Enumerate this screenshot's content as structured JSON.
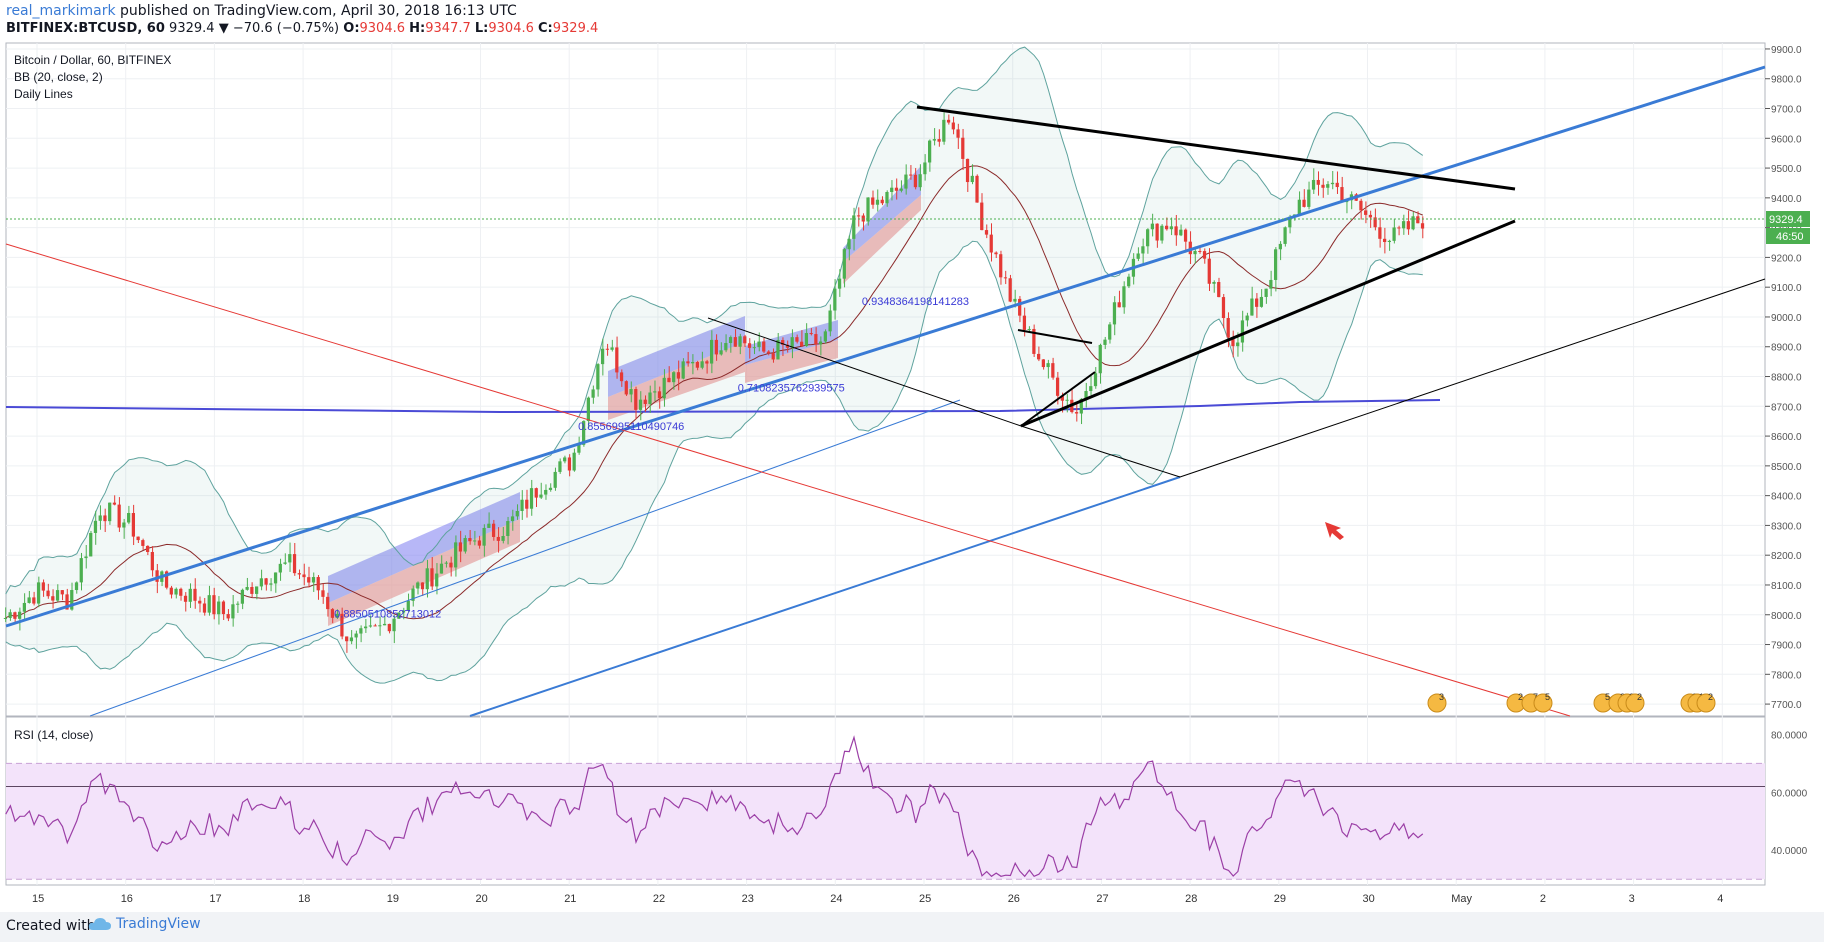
{
  "header": {
    "author": "real_markimark",
    "published": "published on TradingView.com, April 30, 2018 16:13 UTC",
    "symbol": "BITFINEX:BTCUSD, 60",
    "last": "9329.4",
    "change": "▼ −70.6 (−0.75%)",
    "o_label": "O:",
    "o": "9304.6",
    "h_label": "H:",
    "h": "9347.7",
    "l_label": "L:",
    "l": "9304.6",
    "c_label": "C:",
    "c": "9329.4"
  },
  "legend": {
    "line1": "Bitcoin / Dollar, 60, BITFINEX",
    "line2": "BB (20, close, 2)",
    "line3": "Daily Lines"
  },
  "price_badges": {
    "last": "9329.4",
    "countdown": "46:50"
  },
  "rsi_label": "RSI (14, close)",
  "footer": {
    "created": "Created with",
    "brand": "TradingView"
  },
  "colors": {
    "up": "#4caf50",
    "down": "#e53935",
    "trend": "#3a7bd5",
    "bb": "#5fa39e",
    "ma": "#8b2a2a",
    "rsi": "#9b3fa6",
    "rsi_band": "#f3e3fa"
  },
  "chart_data": {
    "type": "candlestick",
    "price_axis": {
      "ticks": [
        "7700.0",
        "7800.0",
        "7900.0",
        "8000.0",
        "8100.0",
        "8200.0",
        "8300.0",
        "8400.0",
        "8500.0",
        "8600.0",
        "8700.0",
        "8800.0",
        "8900.0",
        "9000.0",
        "9100.0",
        "9200.0",
        "9300.0",
        "9400.0",
        "9500.0",
        "9600.0",
        "9700.0",
        "9800.0",
        "9900.0"
      ],
      "ylim": [
        7660,
        9920
      ]
    },
    "rsi_axis": {
      "ticks": [
        "40.0000",
        "60.0000",
        "80.0000"
      ],
      "ylim": [
        28,
        86
      ],
      "bands": [
        30,
        70
      ],
      "level": 62
    },
    "x_axis": {
      "ticks": [
        "15",
        "16",
        "17",
        "18",
        "19",
        "20",
        "21",
        "22",
        "23",
        "24",
        "25",
        "26",
        "27",
        "28",
        "29",
        "30",
        "May",
        "2",
        "3",
        "4"
      ]
    },
    "series_close": [
      7990,
      8080,
      8050,
      8360,
      8300,
      8100,
      8060,
      8000,
      8120,
      8170,
      8080,
      7900,
      7960,
      8080,
      8180,
      8260,
      8300,
      8440,
      8520,
      8930,
      8720,
      8780,
      8850,
      8950,
      8880,
      8900,
      8920,
      9340,
      9400,
      9480,
      9690,
      9330,
      9040,
      8830,
      8680,
      8950,
      9260,
      9320,
      9180,
      8920,
      9100,
      9380,
      9460,
      9360,
      9260,
      9330
    ],
    "annotations": [
      {
        "text": "0.8850510852713012",
        "x": 18.35,
        "y": 7990
      },
      {
        "text": "0.8556995110490746",
        "x": 21.1,
        "y": 8620
      },
      {
        "text": "0.7108235762939575",
        "x": 22.9,
        "y": 8750
      },
      {
        "text": "0.9348364198141283",
        "x": 24.3,
        "y": 9040
      }
    ],
    "event_markers": [
      "3",
      "2",
      "7",
      "5",
      "5",
      "2",
      "2",
      "2",
      "3",
      "1",
      "2"
    ]
  }
}
